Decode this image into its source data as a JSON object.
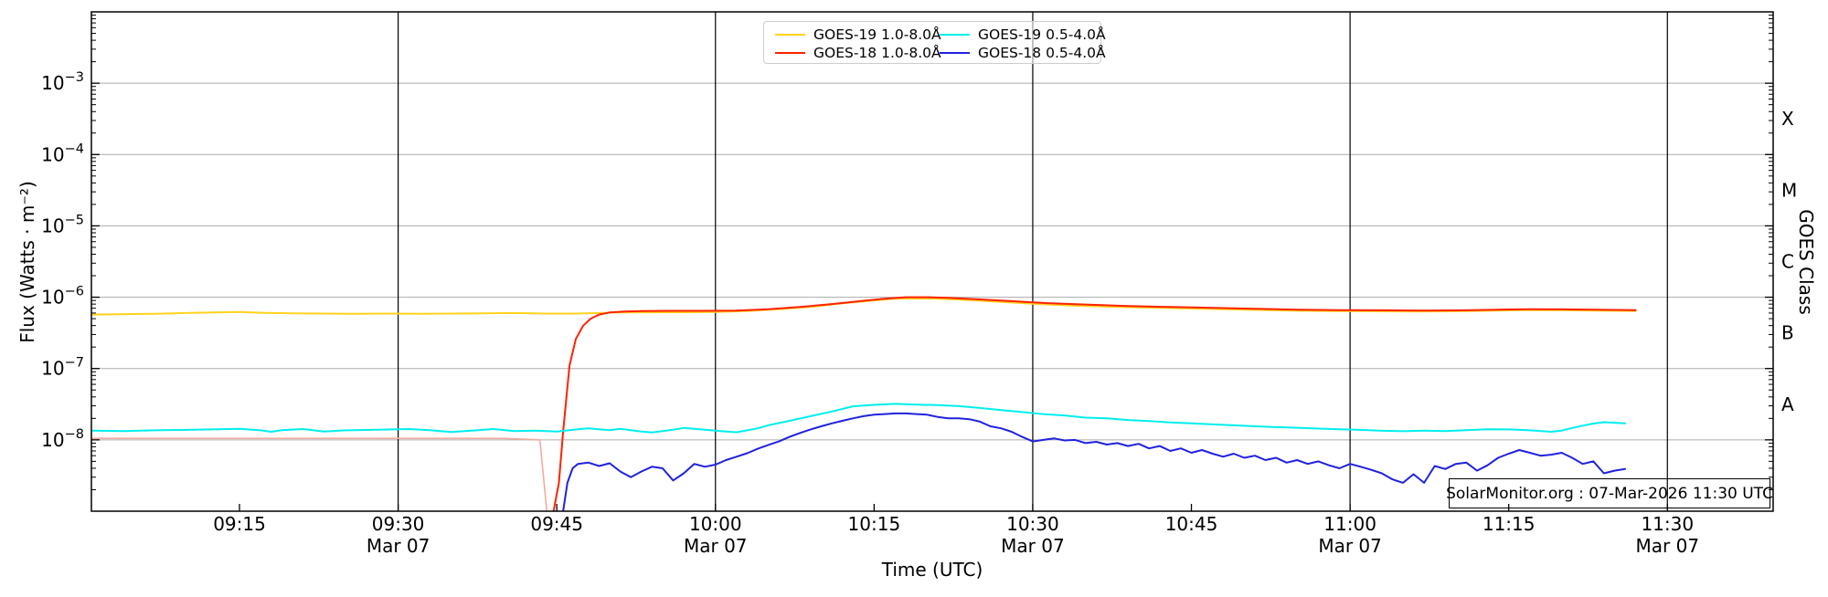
{
  "chart_data": {
    "type": "line",
    "title": "",
    "xlabel": "Time (UTC)",
    "ylabel": "Flux (Watts · m⁻²)",
    "ylabel_right": "GOES Class",
    "watermark": "SolarMonitor.org : 07-Mar-2026 11:30 UTC",
    "grid": "horizontal gray per decade, vertical black at 30-min date ticks",
    "legend_position": "top center, 2 columns, semi-transparent",
    "colors": {
      "grid_h": "#ACACAC",
      "grid_v": "#000000",
      "spine": "#000000",
      "background": "#FFFFFF"
    },
    "xaxis": {
      "unit": "minutes after 09:00 UTC on Mar 07",
      "lim": [
        1,
        160
      ],
      "ticks": [
        {
          "m": 15,
          "label": "09:15"
        },
        {
          "m": 30,
          "label": "09:30",
          "date": "Mar 07"
        },
        {
          "m": 45,
          "label": "09:45"
        },
        {
          "m": 60,
          "label": "10:00",
          "date": "Mar 07"
        },
        {
          "m": 75,
          "label": "10:15"
        },
        {
          "m": 90,
          "label": "10:30",
          "date": "Mar 07"
        },
        {
          "m": 105,
          "label": "10:45"
        },
        {
          "m": 120,
          "label": "11:00",
          "date": "Mar 07"
        },
        {
          "m": 135,
          "label": "11:15"
        },
        {
          "m": 150,
          "label": "11:30",
          "date": "Mar 07"
        }
      ]
    },
    "yaxis": {
      "scale": "log",
      "lim": [
        1e-09,
        0.01
      ],
      "log_lim": [
        -9,
        -2
      ],
      "tick_exponents": [
        -3,
        -4,
        -5,
        -6,
        -7,
        -8
      ]
    },
    "right_axis": {
      "classes": [
        {
          "label": "X",
          "logc": -3.5
        },
        {
          "label": "M",
          "logc": -4.5
        },
        {
          "label": "C",
          "logc": -5.5
        },
        {
          "label": "B",
          "logc": -6.5
        },
        {
          "label": "A",
          "logc": -7.5
        }
      ]
    },
    "series": [
      {
        "id": "goes19-long",
        "label": "GOES-19 1.0-8.0Å",
        "color": "#FFD21E",
        "points": [
          [
            1,
            5.7e-07
          ],
          [
            4,
            5.8e-07
          ],
          [
            7,
            5.85e-07
          ],
          [
            10,
            6e-07
          ],
          [
            13,
            6.15e-07
          ],
          [
            15,
            6.2e-07
          ],
          [
            17,
            6.05e-07
          ],
          [
            20,
            5.95e-07
          ],
          [
            23,
            5.9e-07
          ],
          [
            26,
            5.85e-07
          ],
          [
            29,
            5.9e-07
          ],
          [
            32,
            5.85e-07
          ],
          [
            35,
            5.9e-07
          ],
          [
            38,
            5.95e-07
          ],
          [
            41,
            6e-07
          ],
          [
            44,
            5.9e-07
          ],
          [
            47,
            5.9e-07
          ],
          [
            49,
            6e-07
          ],
          [
            51,
            6.1e-07
          ],
          [
            54,
            6.15e-07
          ],
          [
            57,
            6.15e-07
          ],
          [
            60,
            6.2e-07
          ],
          [
            63,
            6.4e-07
          ],
          [
            66,
            6.8e-07
          ],
          [
            69,
            7.3e-07
          ],
          [
            72,
            8.2e-07
          ],
          [
            75,
            9e-07
          ],
          [
            77,
            9.5e-07
          ],
          [
            79,
            9.6e-07
          ],
          [
            81,
            9.5e-07
          ],
          [
            84,
            9.1e-07
          ],
          [
            87,
            8.6e-07
          ],
          [
            90,
            8.1e-07
          ],
          [
            94,
            7.6e-07
          ],
          [
            98,
            7.3e-07
          ],
          [
            102,
            7.1e-07
          ],
          [
            106,
            6.9e-07
          ],
          [
            110,
            6.7e-07
          ],
          [
            114,
            6.5e-07
          ],
          [
            118,
            6.4e-07
          ],
          [
            122,
            6.35e-07
          ],
          [
            126,
            6.3e-07
          ],
          [
            130,
            6.35e-07
          ],
          [
            134,
            6.5e-07
          ],
          [
            137,
            6.6e-07
          ],
          [
            140,
            6.55e-07
          ],
          [
            143,
            6.5e-07
          ],
          [
            147,
            6.4e-07
          ]
        ]
      },
      {
        "id": "goes18-long",
        "label": "GOES-18 1.0-8.0Å",
        "color": "#FF2200",
        "pre_color": "#F2ABA0",
        "pre_points": [
          [
            1,
            1.05e-08
          ],
          [
            10,
            1.05e-08
          ],
          [
            20,
            1.05e-08
          ],
          [
            30,
            1.05e-08
          ],
          [
            40,
            1.05e-08
          ],
          [
            43.4,
            1e-08
          ],
          [
            44.1,
            8.5e-10
          ]
        ],
        "points": [
          [
            44.6,
            8.5e-10
          ],
          [
            45.2,
            2.5e-09
          ],
          [
            45.6,
            1.3e-08
          ],
          [
            46.2,
            1.1e-07
          ],
          [
            46.8,
            2.6e-07
          ],
          [
            47.5,
            4e-07
          ],
          [
            48.2,
            5e-07
          ],
          [
            49,
            5.7e-07
          ],
          [
            50,
            6.1e-07
          ],
          [
            51.5,
            6.3e-07
          ],
          [
            53,
            6.4e-07
          ],
          [
            56,
            6.45e-07
          ],
          [
            59,
            6.45e-07
          ],
          [
            62,
            6.5e-07
          ],
          [
            65,
            6.8e-07
          ],
          [
            68,
            7.3e-07
          ],
          [
            71,
            8e-07
          ],
          [
            74,
            8.9e-07
          ],
          [
            76,
            9.5e-07
          ],
          [
            78,
            1e-06
          ],
          [
            80,
            1e-06
          ],
          [
            82,
            9.8e-07
          ],
          [
            85,
            9.3e-07
          ],
          [
            88,
            8.8e-07
          ],
          [
            91,
            8.3e-07
          ],
          [
            95,
            7.9e-07
          ],
          [
            99,
            7.5e-07
          ],
          [
            103,
            7.3e-07
          ],
          [
            107,
            7.1e-07
          ],
          [
            111,
            6.9e-07
          ],
          [
            115,
            6.7e-07
          ],
          [
            119,
            6.6e-07
          ],
          [
            123,
            6.55e-07
          ],
          [
            127,
            6.5e-07
          ],
          [
            131,
            6.55e-07
          ],
          [
            134,
            6.7e-07
          ],
          [
            137,
            6.8e-07
          ],
          [
            140,
            6.75e-07
          ],
          [
            143,
            6.7e-07
          ],
          [
            147,
            6.6e-07
          ]
        ]
      },
      {
        "id": "goes19-short",
        "label": "GOES-19 0.5-4.0Å",
        "color": "#00EEEE",
        "points": [
          [
            1,
            1.35e-08
          ],
          [
            4,
            1.33e-08
          ],
          [
            7,
            1.36e-08
          ],
          [
            10,
            1.38e-08
          ],
          [
            13,
            1.41e-08
          ],
          [
            15,
            1.43e-08
          ],
          [
            17,
            1.36e-08
          ],
          [
            18,
            1.3e-08
          ],
          [
            19,
            1.37e-08
          ],
          [
            21,
            1.42e-08
          ],
          [
            23,
            1.31e-08
          ],
          [
            25,
            1.36e-08
          ],
          [
            28,
            1.39e-08
          ],
          [
            31,
            1.42e-08
          ],
          [
            33,
            1.37e-08
          ],
          [
            35,
            1.29e-08
          ],
          [
            37,
            1.35e-08
          ],
          [
            39,
            1.42e-08
          ],
          [
            41,
            1.33e-08
          ],
          [
            43,
            1.35e-08
          ],
          [
            45,
            1.31e-08
          ],
          [
            47,
            1.41e-08
          ],
          [
            48,
            1.45e-08
          ],
          [
            50,
            1.37e-08
          ],
          [
            51,
            1.43e-08
          ],
          [
            53,
            1.31e-08
          ],
          [
            54,
            1.27e-08
          ],
          [
            56,
            1.39e-08
          ],
          [
            57,
            1.47e-08
          ],
          [
            59,
            1.39e-08
          ],
          [
            61,
            1.31e-08
          ],
          [
            62,
            1.28e-08
          ],
          [
            63,
            1.36e-08
          ],
          [
            64,
            1.45e-08
          ],
          [
            65,
            1.6e-08
          ],
          [
            67,
            1.85e-08
          ],
          [
            69,
            2.15e-08
          ],
          [
            71,
            2.5e-08
          ],
          [
            73,
            2.95e-08
          ],
          [
            75,
            3.1e-08
          ],
          [
            77,
            3.2e-08
          ],
          [
            79,
            3.12e-08
          ],
          [
            81,
            3.07e-08
          ],
          [
            83,
            2.97e-08
          ],
          [
            85,
            2.8e-08
          ],
          [
            87,
            2.62e-08
          ],
          [
            89,
            2.45e-08
          ],
          [
            91,
            2.3e-08
          ],
          [
            93,
            2.2e-08
          ],
          [
            95,
            2.05e-08
          ],
          [
            97,
            2e-08
          ],
          [
            99,
            1.9e-08
          ],
          [
            101,
            1.83e-08
          ],
          [
            103,
            1.76e-08
          ],
          [
            105,
            1.7e-08
          ],
          [
            107,
            1.65e-08
          ],
          [
            109,
            1.6e-08
          ],
          [
            111,
            1.55e-08
          ],
          [
            113,
            1.51e-08
          ],
          [
            115,
            1.48e-08
          ],
          [
            117,
            1.44e-08
          ],
          [
            119,
            1.41e-08
          ],
          [
            121,
            1.38e-08
          ],
          [
            123,
            1.34e-08
          ],
          [
            125,
            1.32e-08
          ],
          [
            127,
            1.35e-08
          ],
          [
            129,
            1.33e-08
          ],
          [
            131,
            1.37e-08
          ],
          [
            133,
            1.41e-08
          ],
          [
            135,
            1.4e-08
          ],
          [
            137,
            1.36e-08
          ],
          [
            139,
            1.3e-08
          ],
          [
            140,
            1.35e-08
          ],
          [
            141,
            1.47e-08
          ],
          [
            142,
            1.58e-08
          ],
          [
            143,
            1.69e-08
          ],
          [
            144,
            1.77e-08
          ],
          [
            145,
            1.74e-08
          ],
          [
            146,
            1.7e-08
          ]
        ]
      },
      {
        "id": "goes18-short",
        "label": "GOES-18 0.5-4.0Å",
        "color": "#2121DF",
        "points": [
          [
            45.5,
            8e-10
          ],
          [
            46,
            2.5e-09
          ],
          [
            46.5,
            4e-09
          ],
          [
            47,
            4.6e-09
          ],
          [
            48,
            4.8e-09
          ],
          [
            49,
            4.3e-09
          ],
          [
            50,
            4.7e-09
          ],
          [
            51,
            3.6e-09
          ],
          [
            52,
            3e-09
          ],
          [
            53,
            3.6e-09
          ],
          [
            54,
            4.2e-09
          ],
          [
            55,
            4e-09
          ],
          [
            56,
            2.7e-09
          ],
          [
            57,
            3.4e-09
          ],
          [
            58,
            4.6e-09
          ],
          [
            59,
            4.2e-09
          ],
          [
            60,
            4.5e-09
          ],
          [
            61,
            5.2e-09
          ],
          [
            62,
            5.8e-09
          ],
          [
            63,
            6.5e-09
          ],
          [
            64,
            7.5e-09
          ],
          [
            65,
            8.5e-09
          ],
          [
            66,
            9.5e-09
          ],
          [
            67,
            1.1e-08
          ],
          [
            68,
            1.25e-08
          ],
          [
            69,
            1.4e-08
          ],
          [
            70,
            1.55e-08
          ],
          [
            71,
            1.7e-08
          ],
          [
            72,
            1.85e-08
          ],
          [
            73,
            2e-08
          ],
          [
            74,
            2.15e-08
          ],
          [
            75,
            2.25e-08
          ],
          [
            76,
            2.3e-08
          ],
          [
            77,
            2.35e-08
          ],
          [
            78,
            2.35e-08
          ],
          [
            79,
            2.3e-08
          ],
          [
            80,
            2.25e-08
          ],
          [
            81,
            2.1e-08
          ],
          [
            82,
            2e-08
          ],
          [
            83,
            2e-08
          ],
          [
            84,
            1.95e-08
          ],
          [
            85,
            1.8e-08
          ],
          [
            86,
            1.55e-08
          ],
          [
            87,
            1.45e-08
          ],
          [
            88,
            1.3e-08
          ],
          [
            89,
            1.1e-08
          ],
          [
            90,
            9.5e-09
          ],
          [
            91,
            1e-08
          ],
          [
            92,
            1.05e-08
          ],
          [
            93,
            9.8e-09
          ],
          [
            94,
            1e-08
          ],
          [
            95,
            9e-09
          ],
          [
            96,
            9.4e-09
          ],
          [
            97,
            8.6e-09
          ],
          [
            98,
            9e-09
          ],
          [
            99,
            8.2e-09
          ],
          [
            100,
            8.8e-09
          ],
          [
            101,
            7.6e-09
          ],
          [
            102,
            8.2e-09
          ],
          [
            103,
            7e-09
          ],
          [
            104,
            7.6e-09
          ],
          [
            105,
            6.6e-09
          ],
          [
            106,
            7.2e-09
          ],
          [
            107,
            6.4e-09
          ],
          [
            108,
            5.8e-09
          ],
          [
            109,
            6.4e-09
          ],
          [
            110,
            5.6e-09
          ],
          [
            111,
            6e-09
          ],
          [
            112,
            5.2e-09
          ],
          [
            113,
            5.6e-09
          ],
          [
            114,
            4.8e-09
          ],
          [
            115,
            5.2e-09
          ],
          [
            116,
            4.6e-09
          ],
          [
            117,
            5e-09
          ],
          [
            118,
            4.4e-09
          ],
          [
            119,
            4e-09
          ],
          [
            120,
            4.6e-09
          ],
          [
            121,
            4.2e-09
          ],
          [
            122,
            3.8e-09
          ],
          [
            123,
            3.4e-09
          ],
          [
            124,
            2.8e-09
          ],
          [
            125,
            2.5e-09
          ],
          [
            126,
            3.3e-09
          ],
          [
            127,
            2.5e-09
          ],
          [
            128,
            4.3e-09
          ],
          [
            129,
            3.9e-09
          ],
          [
            130,
            4.6e-09
          ],
          [
            131,
            4.8e-09
          ],
          [
            132,
            3.7e-09
          ],
          [
            133,
            4.4e-09
          ],
          [
            134,
            5.6e-09
          ],
          [
            135,
            6.4e-09
          ],
          [
            136,
            7.2e-09
          ],
          [
            137,
            6.6e-09
          ],
          [
            138,
            6e-09
          ],
          [
            139,
            6.2e-09
          ],
          [
            140,
            6.6e-09
          ],
          [
            141,
            5.6e-09
          ],
          [
            142,
            4.6e-09
          ],
          [
            143,
            5e-09
          ],
          [
            144,
            3.4e-09
          ],
          [
            145,
            3.7e-09
          ],
          [
            146,
            3.9e-09
          ]
        ]
      }
    ]
  }
}
